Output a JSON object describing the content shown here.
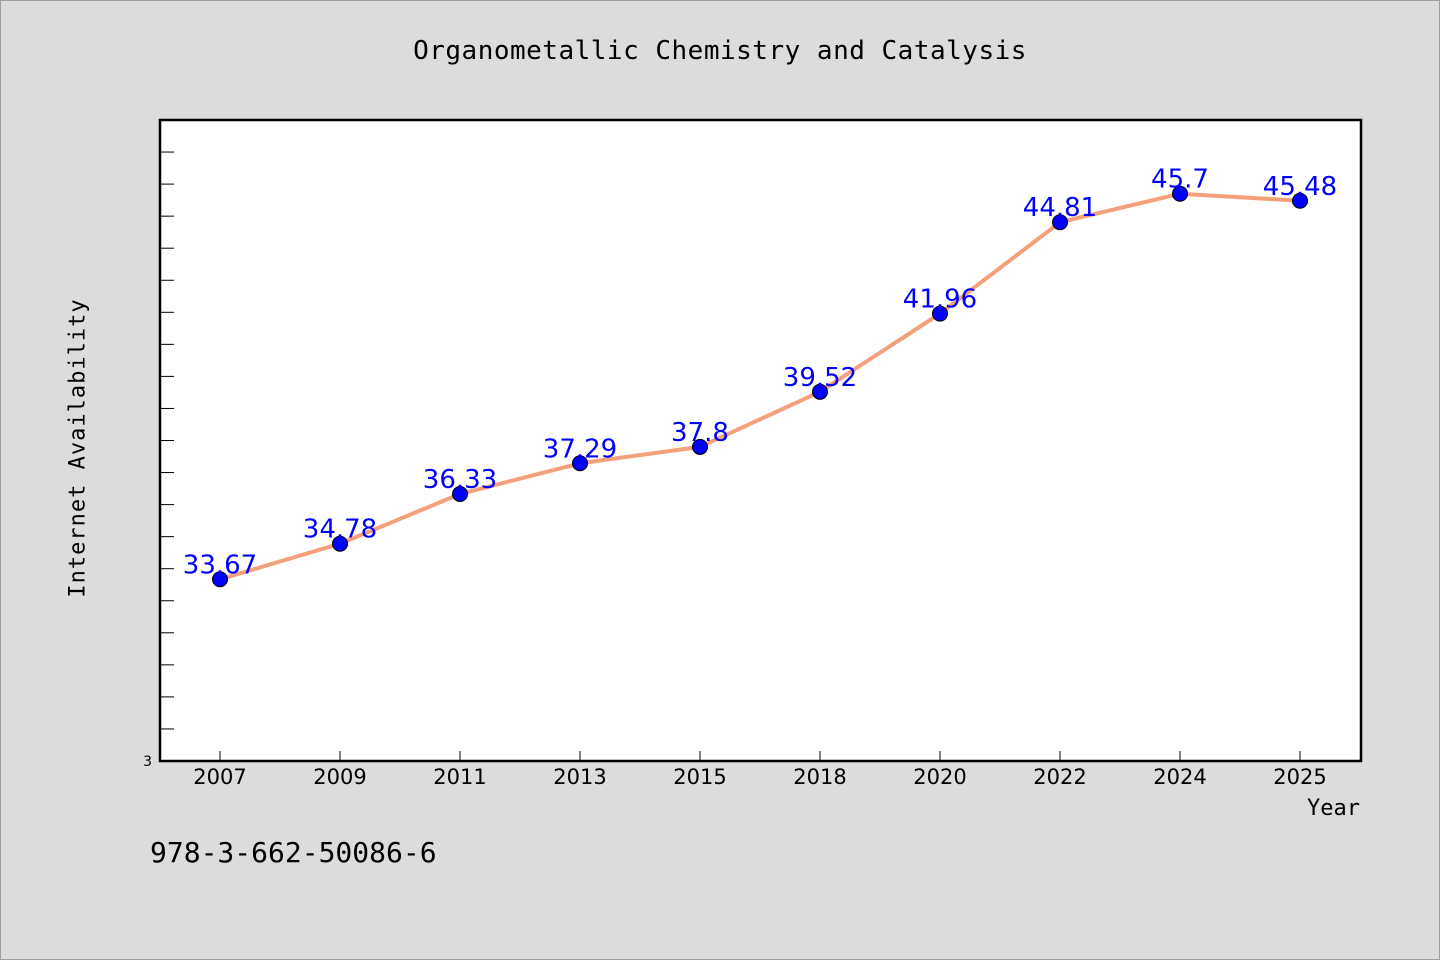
{
  "chart_data": {
    "type": "line",
    "title": "Organometallic Chemistry and Catalysis",
    "xlabel": "Year",
    "ylabel": "Internet Availability",
    "categories": [
      "2007",
      "2009",
      "2011",
      "2013",
      "2015",
      "2018",
      "2020",
      "2022",
      "2024",
      "2025"
    ],
    "series": [
      {
        "values": [
          33.67,
          34.78,
          36.33,
          37.29,
          37.8,
          39.52,
          41.96,
          44.81,
          45.7,
          45.48
        ],
        "data_labels": [
          "33.67",
          "34.78",
          "36.33",
          "37.29",
          "37.8",
          "39.52",
          "41.96",
          "44.81",
          "45.7",
          "45.48"
        ],
        "line_color": "#f4a07a",
        "marker_color": "#0000ff"
      }
    ],
    "y_min_label": "3",
    "ylim": [
      28,
      48
    ],
    "grid": false,
    "legend": "none"
  },
  "footer_text": "978-3-662-50086-6",
  "colors": {
    "background": "#dcdcdc",
    "plot_background": "#ffffff",
    "data_label": "#0000ff"
  }
}
